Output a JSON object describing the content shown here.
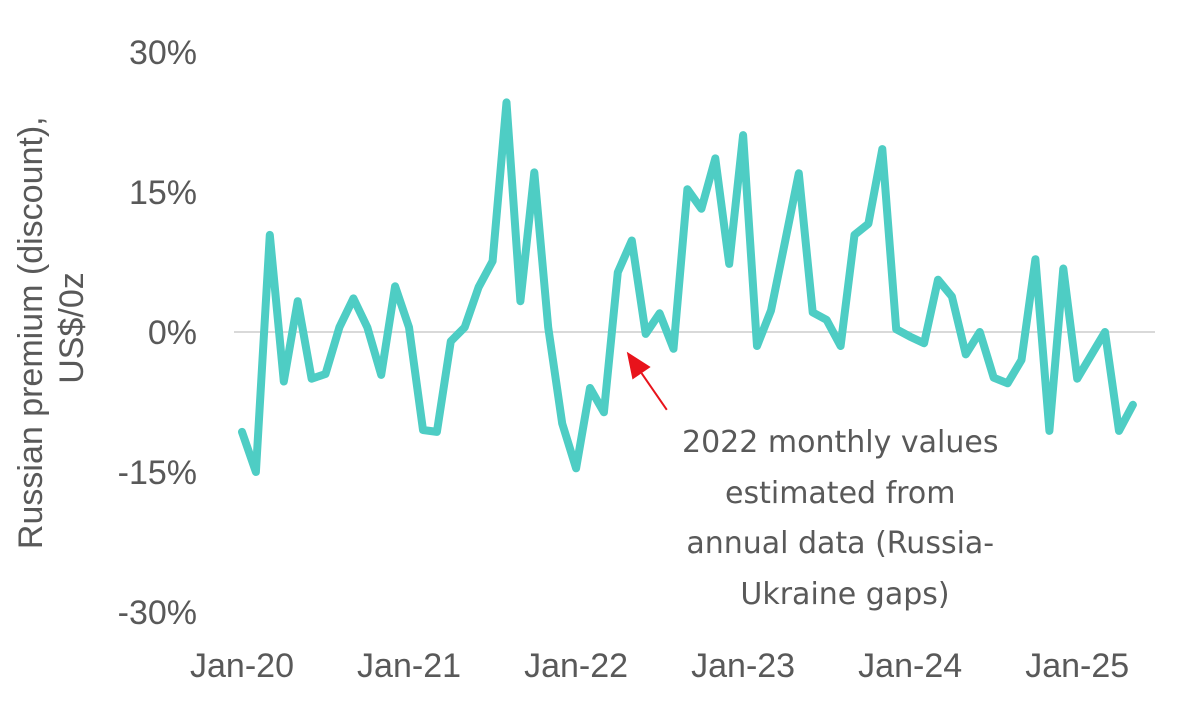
{
  "chart_data": {
    "type": "line",
    "ylabel_lines": [
      "Russian premium (discount),",
      "US$/0z"
    ],
    "xlabel": "",
    "ylim": [
      -30,
      30
    ],
    "yticks": [
      {
        "value": 30,
        "label": "30%"
      },
      {
        "value": 15,
        "label": "15%"
      },
      {
        "value": 0,
        "label": "0%"
      },
      {
        "value": -15,
        "label": "-15%"
      },
      {
        "value": -30,
        "label": "-30%"
      }
    ],
    "xticks": [
      {
        "month_index": 0,
        "label": "Jan-20"
      },
      {
        "month_index": 12,
        "label": "Jan-21"
      },
      {
        "month_index": 24,
        "label": "Jan-22"
      },
      {
        "month_index": 36,
        "label": "Jan-23"
      },
      {
        "month_index": 48,
        "label": "Jan-24"
      },
      {
        "month_index": 60,
        "label": "Jan-25"
      }
    ],
    "grid": false,
    "zero_line": true,
    "series": [
      {
        "color": "#4ECDC4",
        "values": [
          -10.7,
          -15.0,
          10.4,
          -5.3,
          3.3,
          -5.0,
          -4.5,
          0.5,
          3.6,
          0.5,
          -4.6,
          4.9,
          0.5,
          -10.5,
          -10.7,
          -1.0,
          0.5,
          4.8,
          7.6,
          24.6,
          3.3,
          17.1,
          0.5,
          -9.8,
          -14.6,
          -6.0,
          -8.6,
          6.4,
          9.8,
          -0.2,
          2.0,
          -1.8,
          15.3,
          13.2,
          18.6,
          7.3,
          21.1,
          -1.5,
          2.3,
          9.6,
          17.0,
          2.1,
          1.3,
          -1.5,
          10.4,
          11.6,
          19.6,
          0.3,
          -0.5,
          -1.2,
          5.6,
          3.8,
          -2.4,
          0.0,
          -4.9,
          -5.5,
          -3.0,
          7.8,
          -10.6,
          6.8,
          -5.0,
          -2.5,
          0.0,
          -10.6,
          -7.8
        ]
      }
    ],
    "annotation": {
      "text_lines": [
        "2022 monthly values",
        "estimated from",
        "annual data (Russia-",
        "Ukraine gaps)"
      ],
      "arrow_color": "#E8131B",
      "arrow_target": {
        "month_index": 27.5,
        "value": -1.8
      }
    }
  }
}
